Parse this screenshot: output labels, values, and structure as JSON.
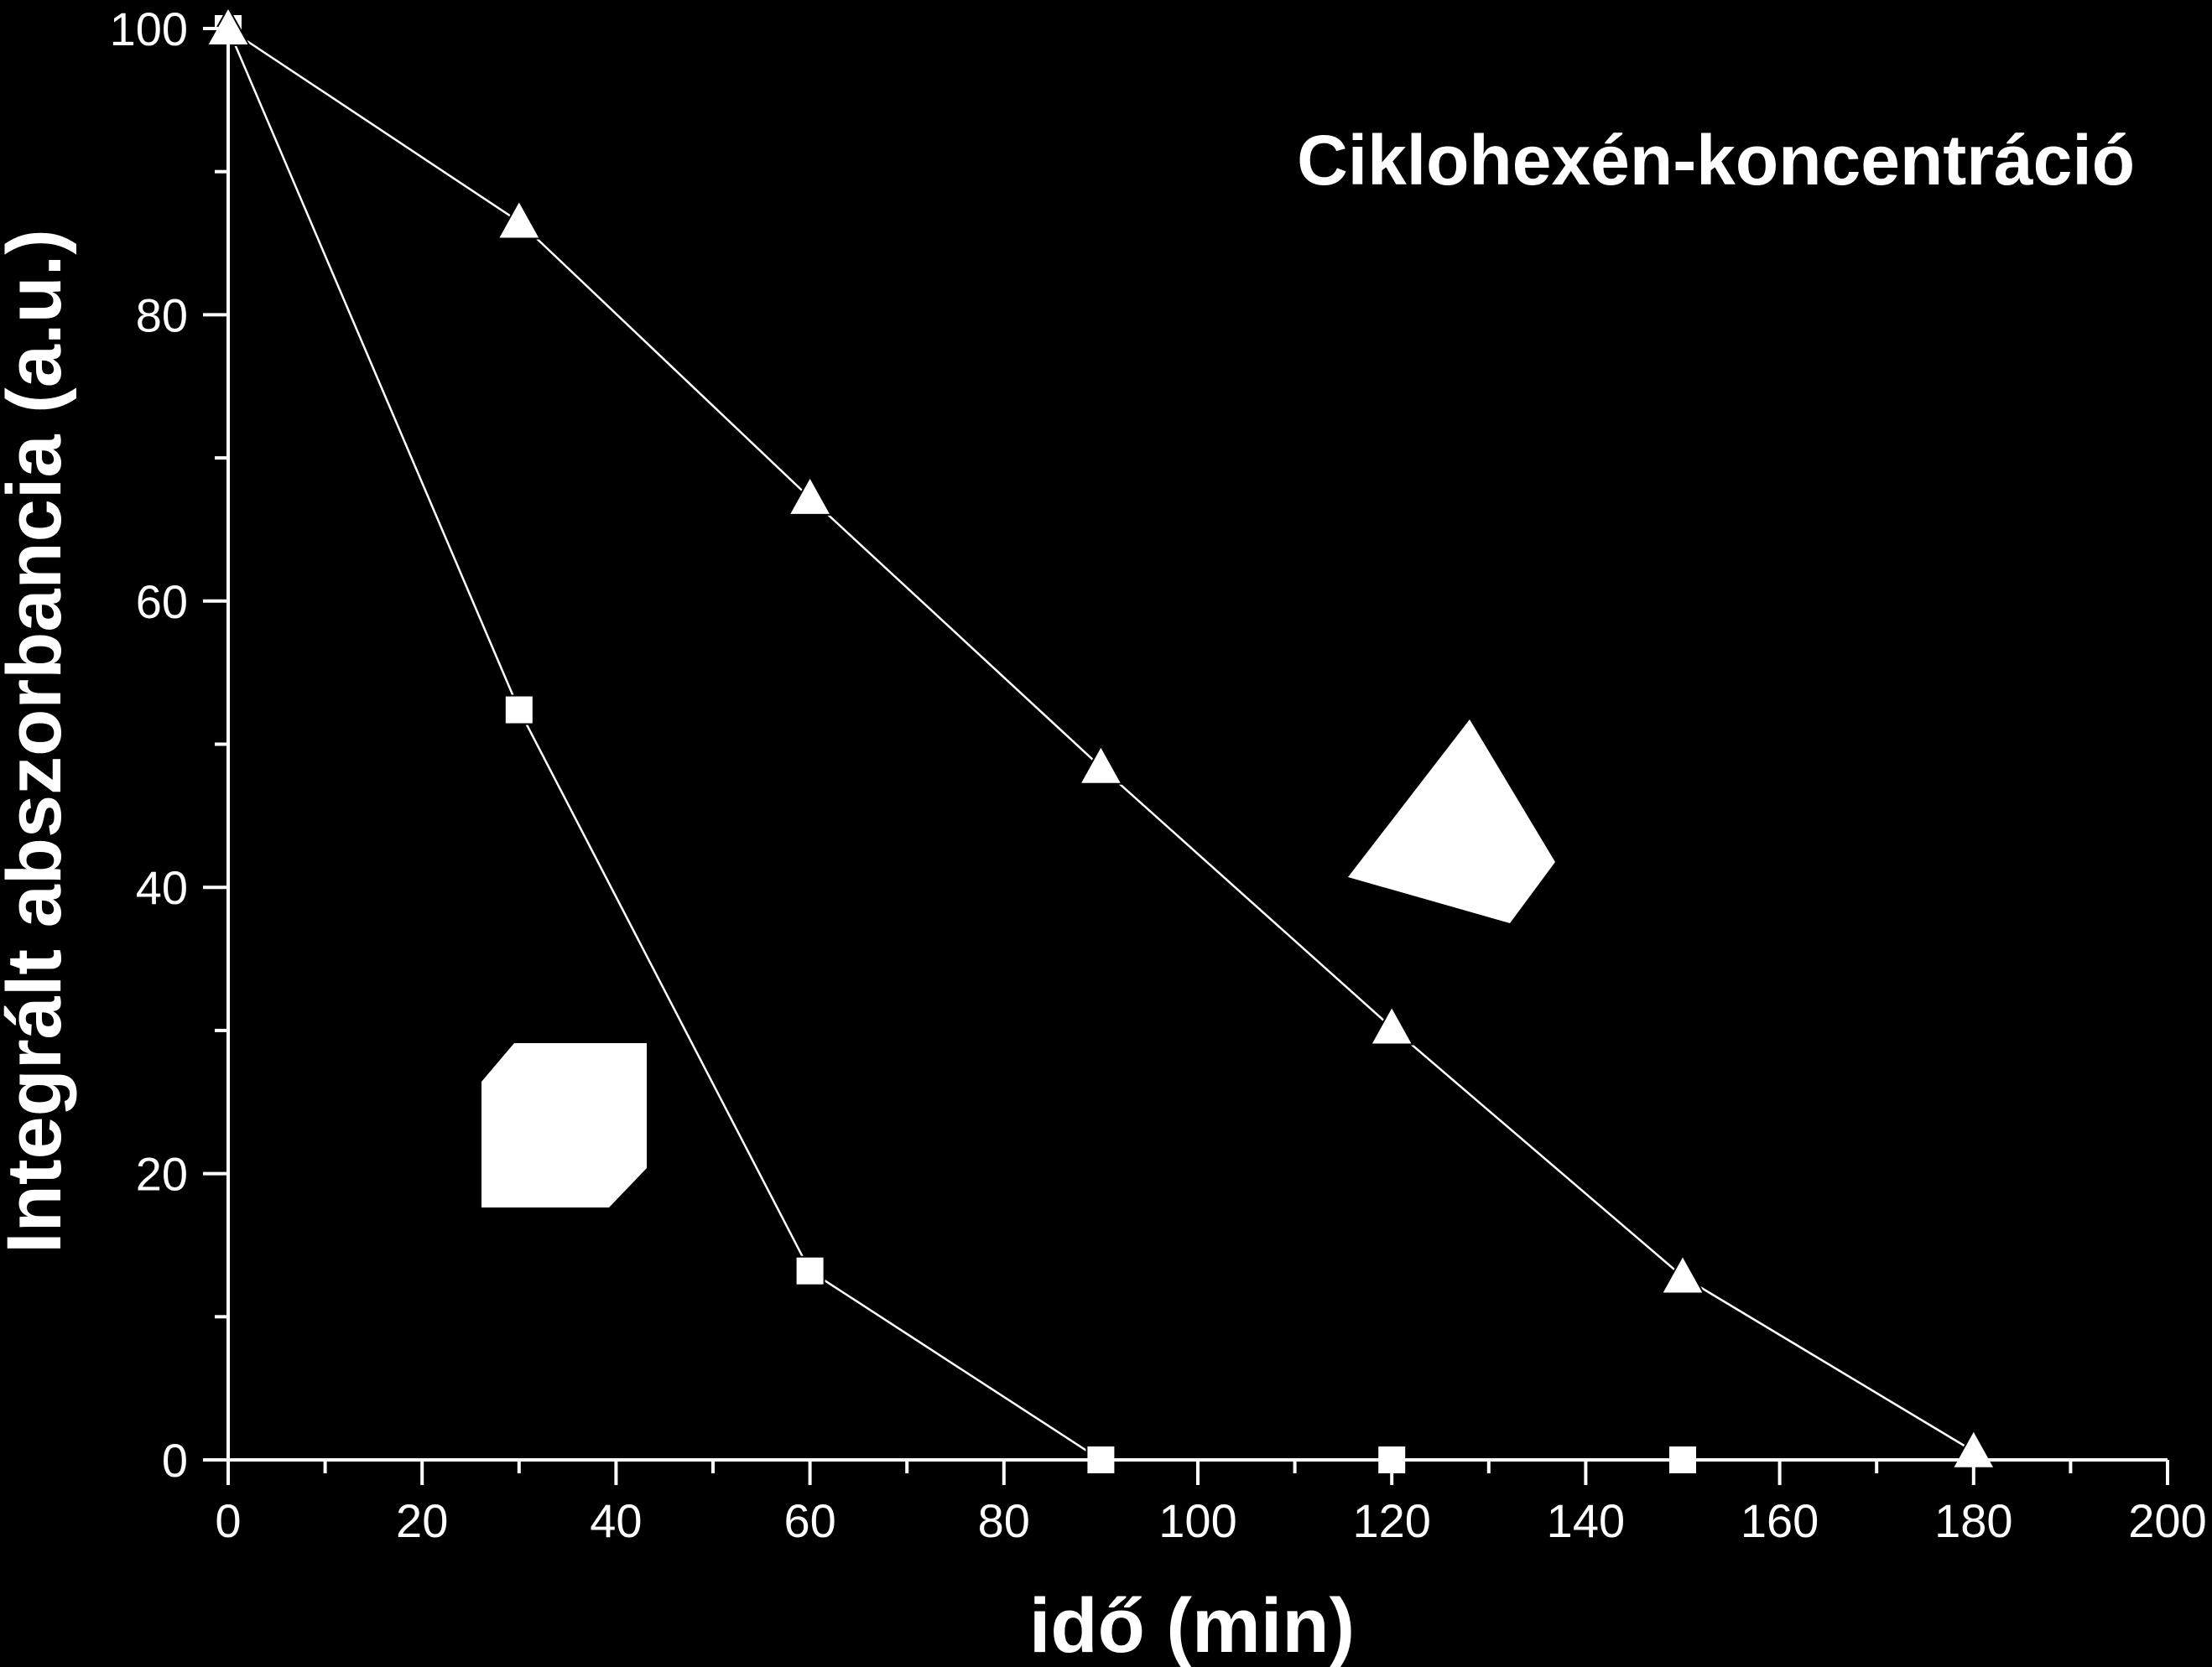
{
  "chart_data": {
    "type": "line",
    "title": "Ciklohexén-koncentráció",
    "xlabel": "idő (min)",
    "ylabel": "Integrált abszorbancia (a.u.)",
    "xlim": [
      0,
      200
    ],
    "ylim": [
      0,
      100
    ],
    "xticks": [
      0,
      20,
      40,
      60,
      80,
      100,
      120,
      140,
      160,
      180,
      200
    ],
    "yticks": [
      0,
      20,
      40,
      60,
      80,
      100
    ],
    "grid": false,
    "background": "#000000",
    "foreground": "#ffffff",
    "series": [
      {
        "marker": "square",
        "x": [
          0,
          30,
          60,
          90,
          120,
          150
        ],
        "y": [
          100,
          52.4,
          13.2,
          0,
          0,
          0
        ]
      },
      {
        "marker": "triangle",
        "x": [
          0,
          30,
          60,
          90,
          120,
          150,
          180
        ],
        "y": [
          100,
          86.5,
          67.2,
          48.4,
          30.2,
          12.8,
          0.6
        ]
      }
    ],
    "legend_icons": [
      "white-octagon-icon",
      "white-trapezoid-icon"
    ]
  }
}
